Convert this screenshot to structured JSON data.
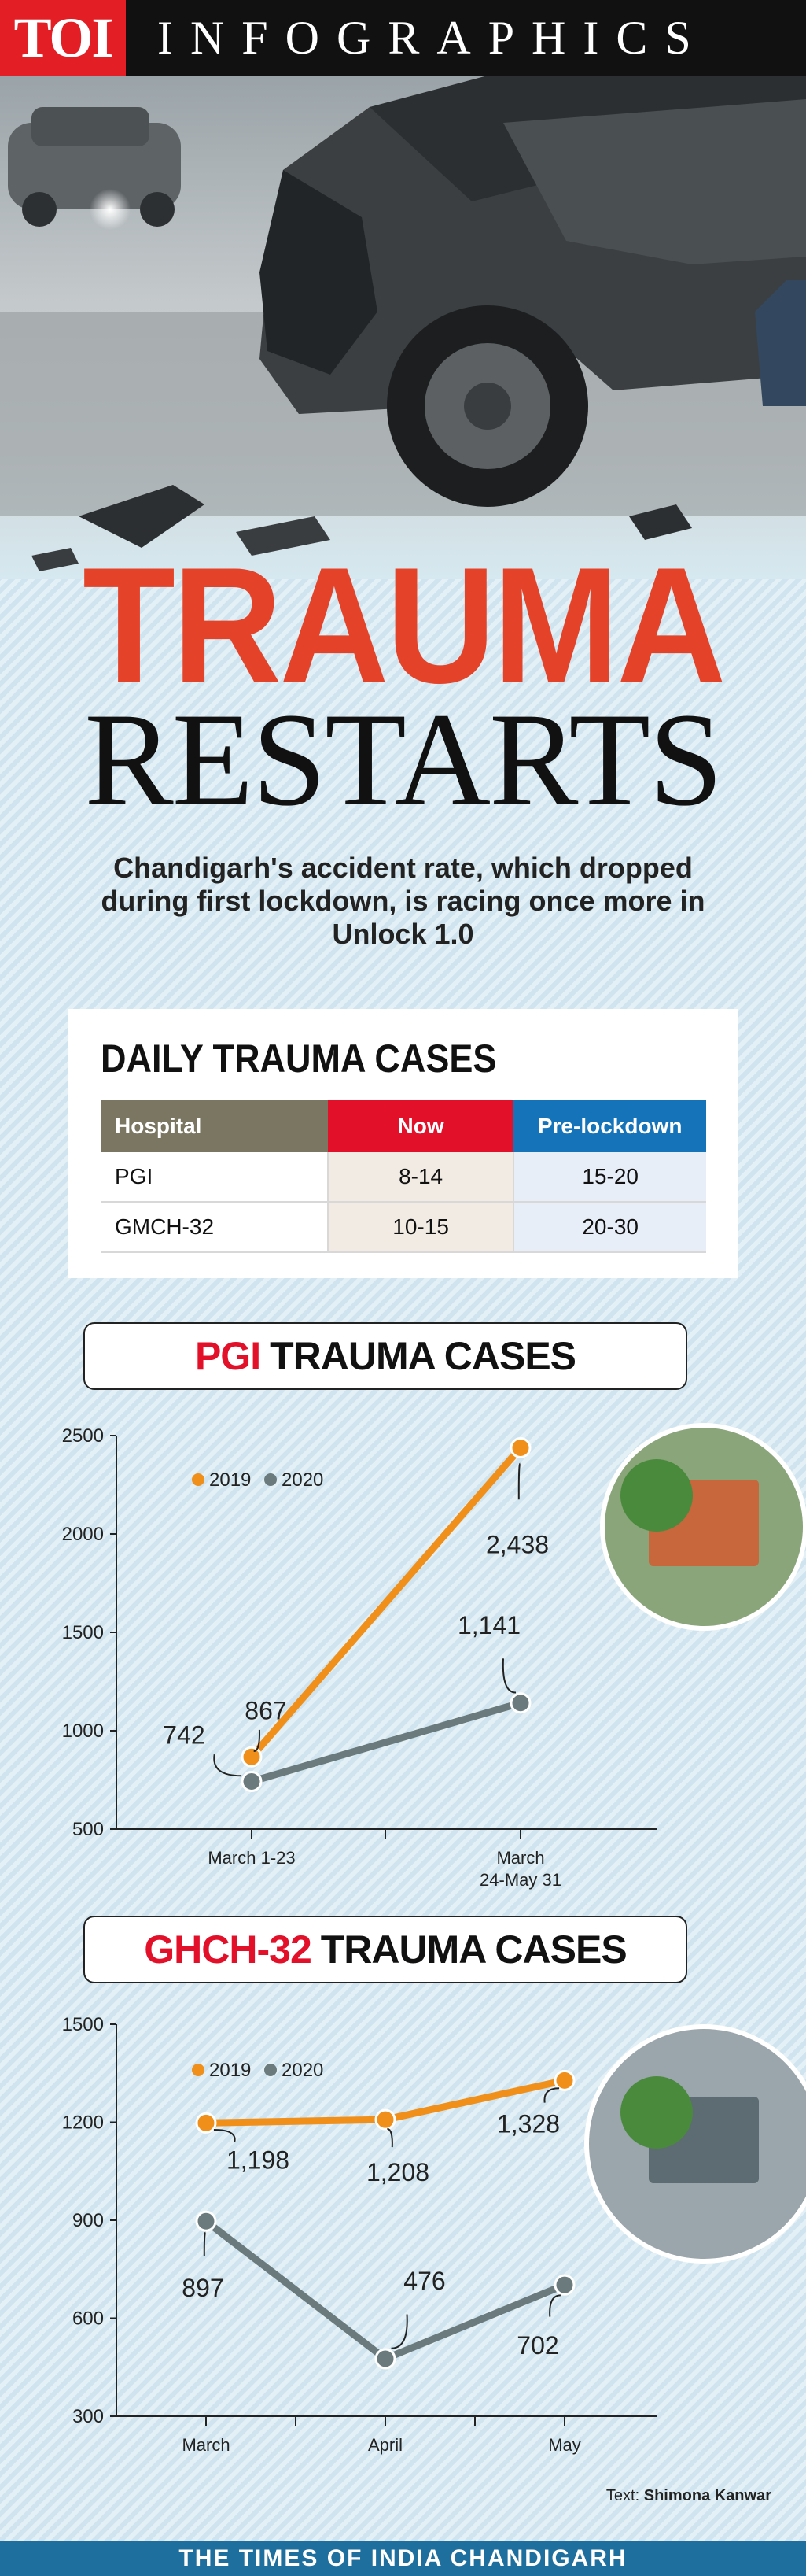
{
  "header": {
    "logo": "TOI",
    "title": "INFOGRAPHICS"
  },
  "headline": {
    "line1": "TRAUMA",
    "line2": "RESTARTS"
  },
  "subtitle": "Chandigarh's accident rate, which dropped during first lockdown, is racing once more in Unlock 1.0",
  "table": {
    "title": "DAILY TRAUMA CASES",
    "headers": [
      "Hospital",
      "Now",
      "Pre-lockdown"
    ],
    "rows": [
      [
        "PGI",
        "8-14",
        "15-20"
      ],
      [
        "GMCH-32",
        "10-15",
        "20-30"
      ]
    ],
    "colors": {
      "hospital": "#7b7662",
      "now": "#e3102a",
      "pre": "#1473b9"
    }
  },
  "chart1_banner": {
    "red": "PGI",
    "rest": "TRAUMA CASES"
  },
  "chart2_banner": {
    "red": "GHCH-32",
    "rest": "TRAUMA CASES"
  },
  "chart_data": [
    {
      "type": "line",
      "title": "PGI TRAUMA CASES",
      "categories": [
        "March 1-23",
        "March 24-May 31"
      ],
      "category_lines": [
        [
          "March 1-23"
        ],
        [
          "March",
          "24-May 31"
        ]
      ],
      "ylim": [
        500,
        2500
      ],
      "yticks": [
        500,
        1000,
        1500,
        2000,
        2500
      ],
      "legend": "top-left",
      "series": [
        {
          "name": "2019",
          "color": "#f0901a",
          "values": [
            867,
            2438
          ],
          "labels": [
            "867",
            "2,438"
          ]
        },
        {
          "name": "2020",
          "color": "#6b7b7d",
          "values": [
            742,
            1141
          ],
          "labels": [
            "742",
            "1,141"
          ]
        }
      ]
    },
    {
      "type": "line",
      "title": "GHCH-32 TRAUMA CASES",
      "categories": [
        "March",
        "April",
        "May"
      ],
      "category_lines": [
        [
          "March"
        ],
        [
          "April"
        ],
        [
          "May"
        ]
      ],
      "ylim": [
        300,
        1500
      ],
      "yticks": [
        300,
        600,
        900,
        1200,
        1500
      ],
      "legend": "top-left",
      "series": [
        {
          "name": "2019",
          "color": "#f0901a",
          "values": [
            1198,
            1208,
            1328
          ],
          "labels": [
            "1,198",
            "1,208",
            "1,328"
          ]
        },
        {
          "name": "2020",
          "color": "#6b7b7d",
          "values": [
            897,
            476,
            702
          ],
          "labels": [
            "897",
            "476",
            "702"
          ]
        }
      ]
    }
  ],
  "credit": {
    "prefix": "Text:",
    "name": "Shimona Kanwar"
  },
  "footer": "THE TIMES OF INDIA CHANDIGARH"
}
